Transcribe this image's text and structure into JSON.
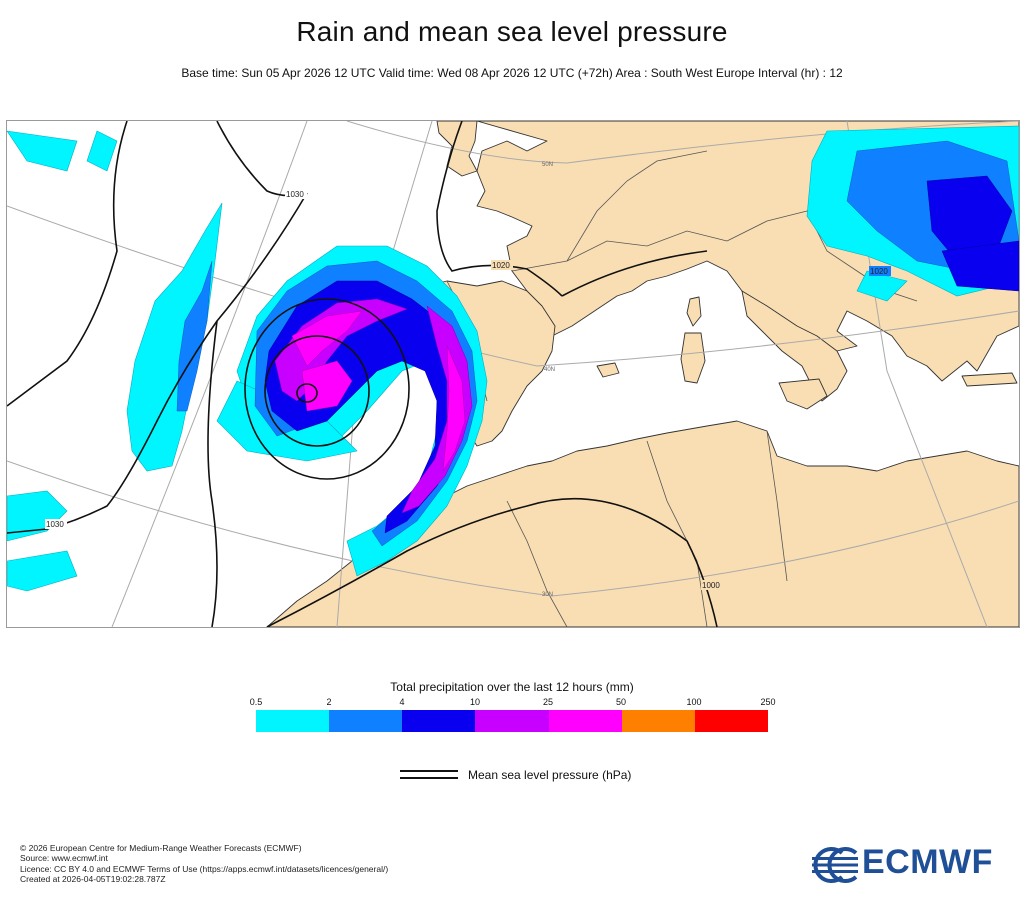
{
  "header": {
    "title": "Rain and mean sea level pressure",
    "subtitle": "Base time: Sun 05 Apr 2026 12 UTC Valid time: Wed 08 Apr 2026 12 UTC (+72h) Area : South West Europe Interval (hr) : 12"
  },
  "map": {
    "isobar_labels": [
      "1030",
      "1030",
      "1020",
      "1020",
      "1000"
    ],
    "graticule_labels": [
      "50N",
      "40N",
      "30N"
    ],
    "colors": {
      "land": "#f9deb3",
      "sea": "#ffffff",
      "coast": "#222222",
      "isobar": "#111111"
    }
  },
  "legend": {
    "title": "Total precipitation over the last 12 hours (mm)",
    "thresholds": [
      "0.5",
      "2",
      "4",
      "10",
      "25",
      "50",
      "100",
      "250"
    ],
    "colors": [
      "#00f5ff",
      "#0f80ff",
      "#0a00f0",
      "#c800ff",
      "#ff00ff",
      "#ff8000",
      "#ff0000"
    ],
    "mslp_label": "Mean sea level pressure (hPa)"
  },
  "footer": {
    "lines": [
      "© 2026 European Centre for Medium-Range Weather Forecasts (ECMWF)",
      "Source: www.ecmwf.int",
      "Licence: CC BY 4.0 and ECMWF Terms of Use (https://apps.ecmwf.int/datasets/licences/general/)",
      "Created at 2026-04-05T19:02:28.787Z"
    ],
    "logo_text": "ECMWF"
  }
}
